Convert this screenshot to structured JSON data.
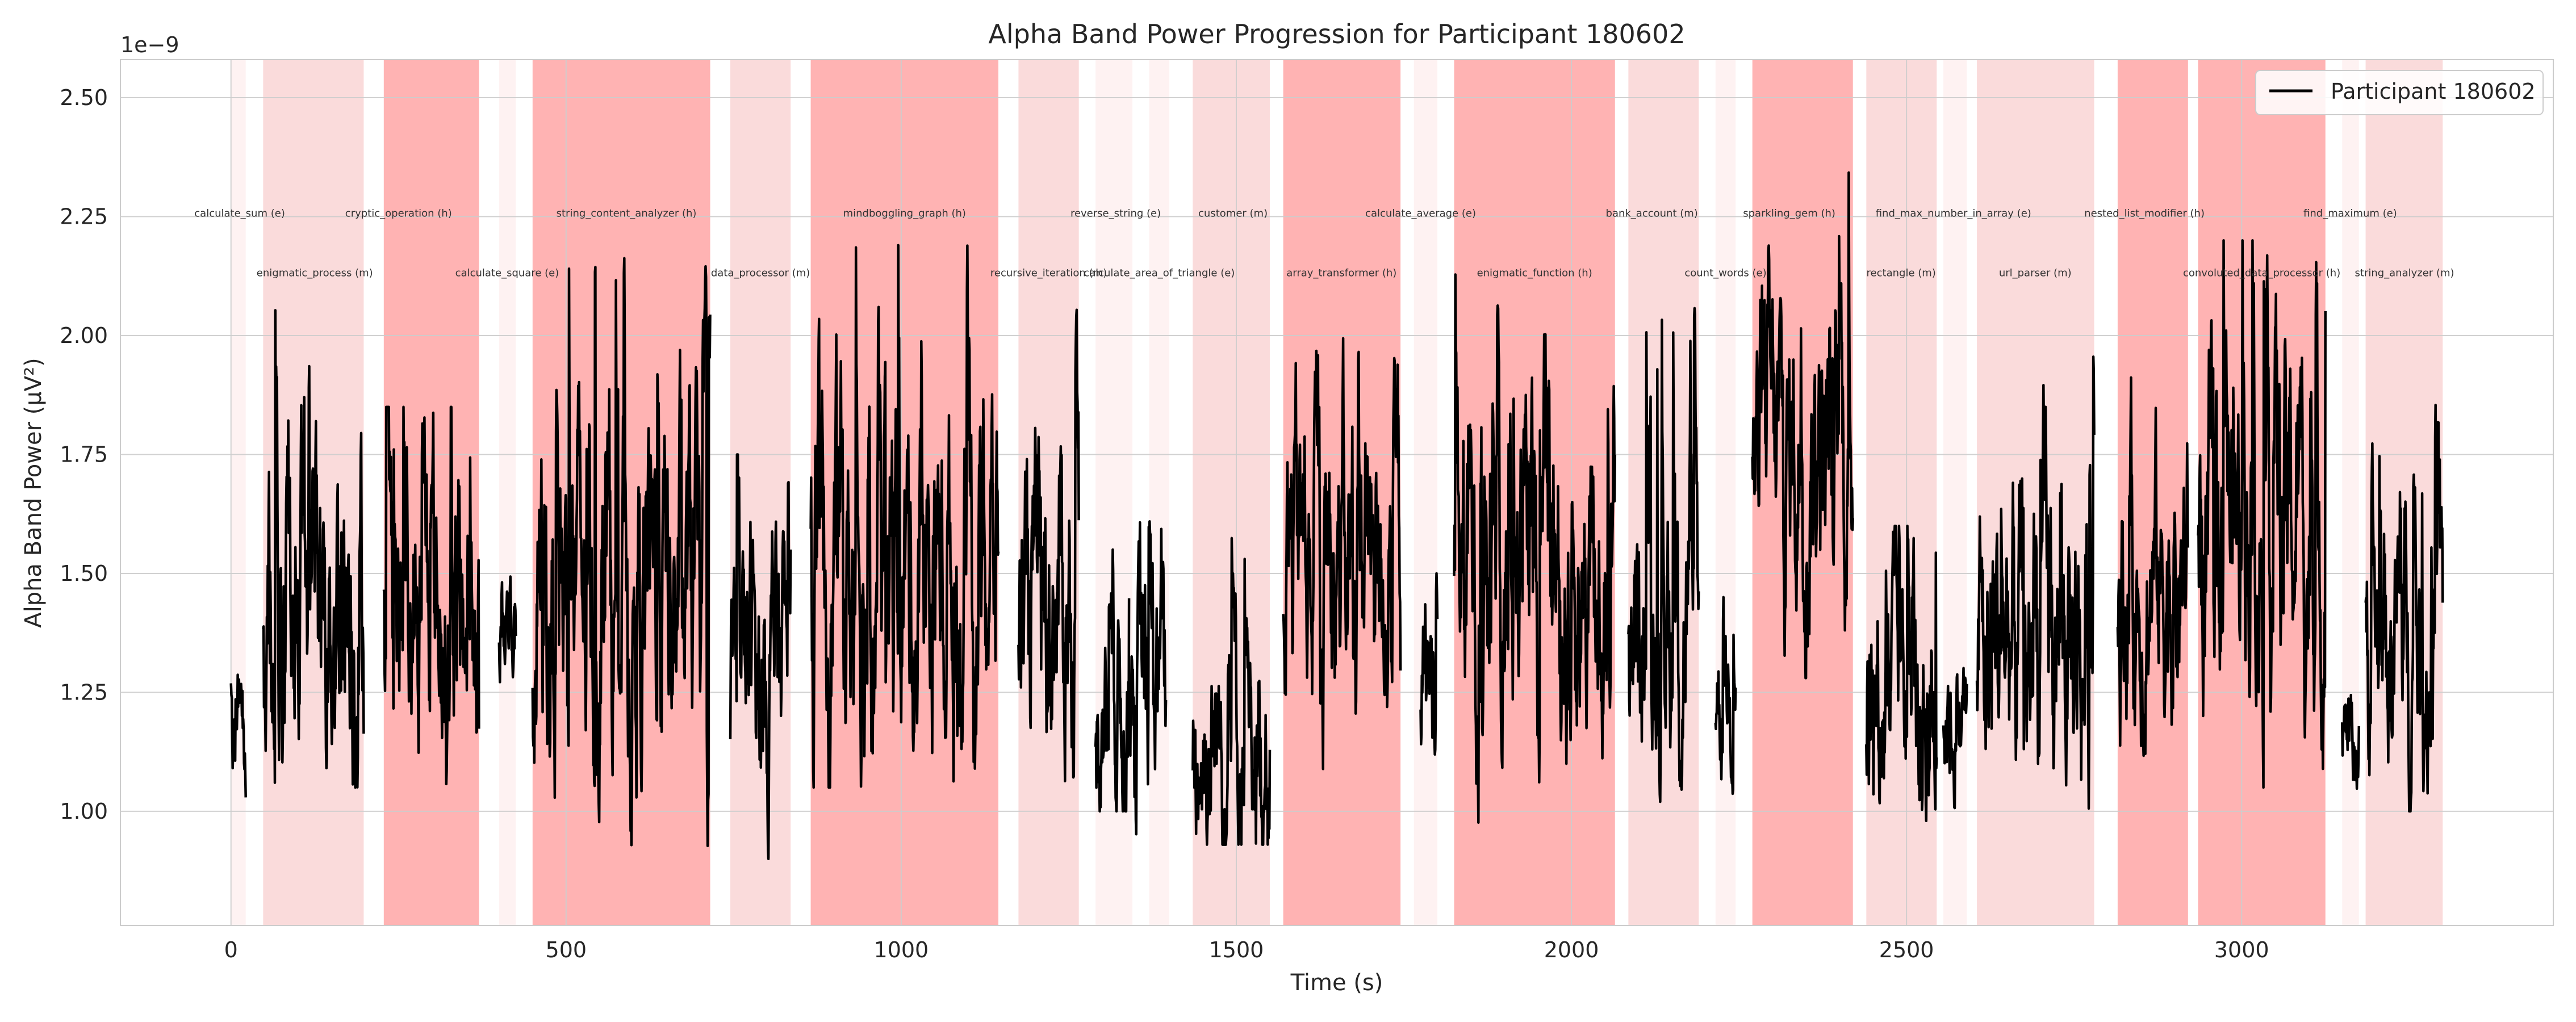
{
  "chart_data": {
    "type": "line",
    "title": "Alpha Band Power Progression for Participant 180602",
    "xlabel": "Time (s)",
    "ylabel": "Alpha Band Power (µV²)",
    "y_offset_label": "1e−9",
    "xlim": [
      -165,
      3465
    ],
    "ylim": [
      0.76,
      2.58
    ],
    "x_ticks": [
      0,
      500,
      1000,
      1500,
      2000,
      2500,
      3000
    ],
    "x_tick_labels": [
      "0",
      "500",
      "1000",
      "1500",
      "2000",
      "2500",
      "3000"
    ],
    "y_ticks": [
      1.0,
      1.25,
      1.5,
      1.75,
      2.0,
      2.25,
      2.5
    ],
    "y_tick_labels": [
      "1.00",
      "1.25",
      "1.50",
      "1.75",
      "2.00",
      "2.25",
      "2.50"
    ],
    "grid": true,
    "legend": {
      "placement": "top-right",
      "entries": [
        "Participant 180602"
      ]
    },
    "series": [
      {
        "name": "Participant 180602",
        "color": "#000000",
        "segments": [
          {
            "x0": 0,
            "x1": 22,
            "mean": 1.2,
            "amp": 0.18,
            "min": 0.84,
            "max": 1.38
          },
          {
            "x0": 48,
            "x1": 198,
            "mean": 1.48,
            "amp": 0.45,
            "min": 1.05,
            "max": 2.1
          },
          {
            "x0": 228,
            "x1": 370,
            "mean": 1.4,
            "amp": 0.38,
            "min": 0.93,
            "max": 1.85
          },
          {
            "x0": 400,
            "x1": 425,
            "mean": 1.4,
            "amp": 0.2,
            "min": 1.1,
            "max": 1.6
          },
          {
            "x0": 450,
            "x1": 715,
            "mean": 1.45,
            "amp": 0.45,
            "min": 0.92,
            "max": 2.3
          },
          {
            "x0": 745,
            "x1": 835,
            "mean": 1.3,
            "amp": 0.35,
            "min": 0.9,
            "max": 1.75
          },
          {
            "x0": 865,
            "x1": 1145,
            "mean": 1.5,
            "amp": 0.45,
            "min": 1.05,
            "max": 2.4
          },
          {
            "x0": 1175,
            "x1": 1265,
            "mean": 1.45,
            "amp": 0.4,
            "min": 1.0,
            "max": 2.1
          },
          {
            "x0": 1290,
            "x1": 1340,
            "mean": 1.25,
            "amp": 0.3,
            "min": 1.0,
            "max": 1.55
          },
          {
            "x0": 1340,
            "x1": 1395,
            "mean": 1.25,
            "amp": 0.35,
            "min": 0.9,
            "max": 1.9
          },
          {
            "x0": 1435,
            "x1": 1550,
            "mean": 1.15,
            "amp": 0.3,
            "min": 0.93,
            "max": 1.6
          },
          {
            "x0": 1570,
            "x1": 1745,
            "mean": 1.55,
            "amp": 0.4,
            "min": 1.02,
            "max": 2.1
          },
          {
            "x0": 1775,
            "x1": 1800,
            "mean": 1.25,
            "amp": 0.25,
            "min": 0.9,
            "max": 1.5
          },
          {
            "x0": 1825,
            "x1": 2065,
            "mean": 1.5,
            "amp": 0.45,
            "min": 0.9,
            "max": 2.3
          },
          {
            "x0": 2085,
            "x1": 2190,
            "mean": 1.45,
            "amp": 0.4,
            "min": 1.02,
            "max": 2.15
          },
          {
            "x0": 2215,
            "x1": 2245,
            "mean": 1.25,
            "amp": 0.2,
            "min": 1.02,
            "max": 1.45
          },
          {
            "x0": 2270,
            "x1": 2420,
            "mean": 1.75,
            "amp": 0.4,
            "min": 1.28,
            "max": 2.5
          },
          {
            "x0": 2440,
            "x1": 2545,
            "mean": 1.25,
            "amp": 0.35,
            "min": 0.98,
            "max": 1.6
          },
          {
            "x0": 2555,
            "x1": 2590,
            "mean": 1.2,
            "amp": 0.2,
            "min": 0.9,
            "max": 1.4
          },
          {
            "x0": 2605,
            "x1": 2780,
            "mean": 1.35,
            "amp": 0.4,
            "min": 0.93,
            "max": 2.08
          },
          {
            "x0": 2815,
            "x1": 2920,
            "mean": 1.48,
            "amp": 0.35,
            "min": 1.05,
            "max": 2.0
          },
          {
            "x0": 2935,
            "x1": 3125,
            "mean": 1.6,
            "amp": 0.45,
            "min": 1.05,
            "max": 2.2
          },
          {
            "x0": 3150,
            "x1": 3175,
            "mean": 1.15,
            "amp": 0.15,
            "min": 1.0,
            "max": 1.35
          },
          {
            "x0": 3185,
            "x1": 3300,
            "mean": 1.35,
            "amp": 0.35,
            "min": 1.0,
            "max": 1.87
          }
        ]
      }
    ],
    "task_spans": [
      {
        "label": "calculate_sum (e)",
        "x0": 0,
        "x1": 22,
        "difficulty": "e"
      },
      {
        "label": "enigmatic_process (m)",
        "x0": 48,
        "x1": 198,
        "difficulty": "m"
      },
      {
        "label": "cryptic_operation (h)",
        "x0": 228,
        "x1": 370,
        "difficulty": "h"
      },
      {
        "label": "calculate_square (e)",
        "x0": 400,
        "x1": 425,
        "difficulty": "e"
      },
      {
        "label": "string_content_analyzer (h)",
        "x0": 450,
        "x1": 715,
        "difficulty": "h"
      },
      {
        "label": "data_processor (m)",
        "x0": 745,
        "x1": 835,
        "difficulty": "m"
      },
      {
        "label": "mindboggling_graph (h)",
        "x0": 865,
        "x1": 1145,
        "difficulty": "h"
      },
      {
        "label": "recursive_iteration (m)",
        "x0": 1175,
        "x1": 1265,
        "difficulty": "m"
      },
      {
        "label": "reverse_string (e)",
        "x0": 1290,
        "x1": 1345,
        "difficulty": "e"
      },
      {
        "label": "calculate_area_of_triangle (e)",
        "x0": 1370,
        "x1": 1400,
        "difficulty": "e"
      },
      {
        "label": "customer (m)",
        "x0": 1435,
        "x1": 1550,
        "difficulty": "m"
      },
      {
        "label": "array_transformer (h)",
        "x0": 1570,
        "x1": 1745,
        "difficulty": "h"
      },
      {
        "label": "calculate_average (e)",
        "x0": 1765,
        "x1": 1800,
        "difficulty": "e"
      },
      {
        "label": "enigmatic_function (h)",
        "x0": 1825,
        "x1": 2065,
        "difficulty": "h"
      },
      {
        "label": "bank_account (m)",
        "x0": 2085,
        "x1": 2190,
        "difficulty": "m"
      },
      {
        "label": "count_words (e)",
        "x0": 2215,
        "x1": 2245,
        "difficulty": "e"
      },
      {
        "label": "sparkling_gem (h)",
        "x0": 2270,
        "x1": 2420,
        "difficulty": "h"
      },
      {
        "label": "rectangle (m)",
        "x0": 2440,
        "x1": 2545,
        "difficulty": "m"
      },
      {
        "label": "find_max_number_in_array (e)",
        "x0": 2555,
        "x1": 2590,
        "difficulty": "e"
      },
      {
        "label": "url_parser (m)",
        "x0": 2605,
        "x1": 2780,
        "difficulty": "m"
      },
      {
        "label": "nested_list_modifier (h)",
        "x0": 2815,
        "x1": 2920,
        "difficulty": "h"
      },
      {
        "label": "convoluted_data_processor (h)",
        "x0": 2935,
        "x1": 3125,
        "difficulty": "h"
      },
      {
        "label": "find_maximum (e)",
        "x0": 3150,
        "x1": 3175,
        "difficulty": "e"
      },
      {
        "label": "string_analyzer (m)",
        "x0": 3185,
        "x1": 3300,
        "difficulty": "m"
      }
    ],
    "span_colors": {
      "e": "#fdecec",
      "m": "#f8cfcf",
      "h": "#ff9999"
    },
    "span_opacity": {
      "e": 0.7,
      "m": 0.75,
      "h": 0.75
    },
    "task_label_rows": [
      {
        "x": 13,
        "row": 0,
        "label": "calculate_sum (e)"
      },
      {
        "x": 250,
        "row": 0,
        "label": "cryptic_operation (h)"
      },
      {
        "x": 590,
        "row": 0,
        "label": "string_content_analyzer (h)"
      },
      {
        "x": 1005,
        "row": 0,
        "label": "mindboggling_graph (h)"
      },
      {
        "x": 1320,
        "row": 0,
        "label": "reverse_string (e)"
      },
      {
        "x": 1495,
        "row": 0,
        "label": "customer (m)"
      },
      {
        "x": 1775,
        "row": 0,
        "label": "calculate_average (e)"
      },
      {
        "x": 2120,
        "row": 0,
        "label": "bank_account (m)"
      },
      {
        "x": 2325,
        "row": 0,
        "label": "sparkling_gem (h)"
      },
      {
        "x": 2570,
        "row": 0,
        "label": "find_max_number_in_array (e)"
      },
      {
        "x": 2855,
        "row": 0,
        "label": "nested_list_modifier (h)"
      },
      {
        "x": 3162,
        "row": 0,
        "label": "find_maximum (e)"
      },
      {
        "x": 125,
        "row": 1,
        "label": "enigmatic_process (m)"
      },
      {
        "x": 412,
        "row": 1,
        "label": "calculate_square (e)"
      },
      {
        "x": 790,
        "row": 1,
        "label": "data_processor (m)"
      },
      {
        "x": 1220,
        "row": 1,
        "label": "recursive_iteration (m)"
      },
      {
        "x": 1385,
        "row": 1,
        "label": "calculate_area_of_triangle (e)"
      },
      {
        "x": 1657,
        "row": 1,
        "label": "array_transformer (h)"
      },
      {
        "x": 1945,
        "row": 1,
        "label": "enigmatic_function (h)"
      },
      {
        "x": 2230,
        "row": 1,
        "label": "count_words (e)"
      },
      {
        "x": 2492,
        "row": 1,
        "label": "rectangle (m)"
      },
      {
        "x": 2692,
        "row": 1,
        "label": "url_parser (m)"
      },
      {
        "x": 3030,
        "row": 1,
        "label": "convoluted_data_processor (h)"
      },
      {
        "x": 3243,
        "row": 1,
        "label": "string_analyzer (m)"
      }
    ],
    "task_label_y": [
      2.25,
      2.125
    ]
  }
}
